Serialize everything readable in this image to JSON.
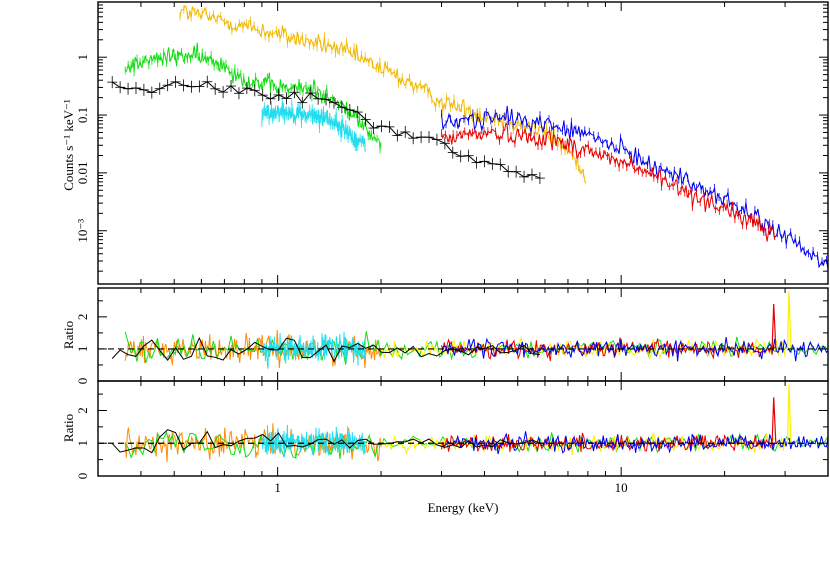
{
  "colors": {
    "black": "#000000",
    "green": "#11dd11",
    "cyan": "#22ddee",
    "gold": "#f2b800",
    "blue": "#0000ee",
    "red": "#e80000",
    "orange": "#ff8c00",
    "yellow": "#ffee00"
  },
  "chart_data": [
    {
      "type": "line",
      "panel": "spectrum",
      "xlabel": "Energy (keV)",
      "ylabel": "Counts s⁻¹ keV⁻¹",
      "xscale": "log",
      "yscale": "log",
      "xlim": [
        0.3,
        40
      ],
      "ylim": [
        0.00012,
        9
      ],
      "y_tick_labels": [
        "1",
        "0.1",
        "0.01",
        "10⁻³"
      ],
      "y_tick_values": [
        1,
        0.1,
        0.01,
        0.001
      ],
      "grid": false,
      "series": [
        {
          "color_key": "gold",
          "x": [
            0.52,
            0.7,
            1.0,
            1.5,
            2.0,
            2.5,
            3.0,
            4.0,
            5.0,
            6.0,
            7.0,
            7.9
          ],
          "y": [
            6.5,
            4.2,
            2.5,
            1.4,
            0.65,
            0.33,
            0.17,
            0.1,
            0.075,
            0.05,
            0.025,
            0.008
          ]
        },
        {
          "color_key": "green",
          "x": [
            0.36,
            0.45,
            0.55,
            0.7,
            0.8,
            0.9,
            1.0,
            1.3,
            1.6,
            1.8,
            2.0
          ],
          "y": [
            0.7,
            0.95,
            1.1,
            0.75,
            0.4,
            0.35,
            0.3,
            0.28,
            0.12,
            0.06,
            0.03
          ]
        },
        {
          "color_key": "cyan",
          "x": [
            0.9,
            1.0,
            1.2,
            1.4,
            1.6,
            1.8
          ],
          "y": [
            0.1,
            0.12,
            0.1,
            0.09,
            0.05,
            0.03
          ]
        },
        {
          "color_key": "black",
          "x": [
            0.33,
            0.4,
            0.5,
            0.6,
            0.8,
            1.0,
            1.2,
            1.5,
            1.8,
            2.2,
            2.8,
            3.3,
            4.0,
            5.0,
            5.8
          ],
          "y": [
            0.35,
            0.28,
            0.35,
            0.3,
            0.25,
            0.22,
            0.2,
            0.17,
            0.08,
            0.05,
            0.04,
            0.025,
            0.015,
            0.01,
            0.008
          ]
        },
        {
          "color_key": "blue",
          "x": [
            3.0,
            4.0,
            5.0,
            6.0,
            8.0,
            10.0,
            12.0,
            15.0,
            20.0,
            25.0,
            30.0,
            35.0,
            40.0
          ],
          "y": [
            0.07,
            0.09,
            0.085,
            0.07,
            0.045,
            0.025,
            0.015,
            0.008,
            0.0035,
            0.0015,
            0.0008,
            0.0004,
            0.00025
          ]
        },
        {
          "color_key": "red",
          "x": [
            3.0,
            4.0,
            5.0,
            6.0,
            8.0,
            10.0,
            12.0,
            15.0,
            20.0,
            25.0,
            28.0
          ],
          "y": [
            0.04,
            0.05,
            0.045,
            0.04,
            0.025,
            0.015,
            0.01,
            0.005,
            0.0025,
            0.0012,
            0.0008
          ]
        }
      ]
    },
    {
      "type": "line",
      "panel": "ratio-1",
      "ylabel": "Ratio",
      "xscale": "log",
      "xlim": [
        0.3,
        40
      ],
      "ylim": [
        0,
        2.9
      ],
      "y_tick_labels": [
        "0",
        "1",
        "2"
      ],
      "y_tick_values": [
        0,
        1,
        2
      ],
      "reference_line": 1,
      "series": [
        {
          "color_key": "orange",
          "x": [
            0.36,
            2.0
          ],
          "y": [
            1.0,
            1.0
          ]
        },
        {
          "color_key": "green",
          "x": [
            0.36,
            40
          ],
          "y": [
            1.0,
            1.0
          ]
        },
        {
          "color_key": "cyan",
          "x": [
            0.9,
            1.8
          ],
          "y": [
            1.0,
            1.0
          ]
        },
        {
          "color_key": "yellow",
          "x": [
            2.0,
            30
          ],
          "y": [
            1.0,
            1.0
          ]
        },
        {
          "color_key": "red",
          "x": [
            3.0,
            28
          ],
          "y": [
            1.0,
            1.0
          ]
        },
        {
          "color_key": "blue",
          "x": [
            3.0,
            40
          ],
          "y": [
            1.0,
            1.0
          ]
        },
        {
          "color_key": "black",
          "x": [
            0.33,
            5.8
          ],
          "y": [
            1.0,
            1.0
          ]
        }
      ]
    },
    {
      "type": "line",
      "panel": "ratio-2",
      "ylabel": "Ratio",
      "xscale": "log",
      "xlim": [
        0.3,
        40
      ],
      "ylim": [
        0,
        2.9
      ],
      "y_tick_labels": [
        "0",
        "1",
        "2"
      ],
      "y_tick_values": [
        0,
        1,
        2
      ],
      "x_tick_labels": [
        "1",
        "10"
      ],
      "x_tick_values": [
        1,
        10
      ],
      "reference_line": 1,
      "series": [
        {
          "color_key": "orange",
          "x": [
            0.36,
            2.0
          ],
          "y": [
            1.0,
            1.0
          ]
        },
        {
          "color_key": "green",
          "x": [
            0.36,
            40
          ],
          "y": [
            1.0,
            1.0
          ]
        },
        {
          "color_key": "cyan",
          "x": [
            0.9,
            1.8
          ],
          "y": [
            1.0,
            1.0
          ]
        },
        {
          "color_key": "yellow",
          "x": [
            2.0,
            30
          ],
          "y": [
            1.0,
            1.0
          ]
        },
        {
          "color_key": "red",
          "x": [
            3.0,
            28
          ],
          "y": [
            1.0,
            1.0
          ]
        },
        {
          "color_key": "blue",
          "x": [
            3.0,
            40
          ],
          "y": [
            1.0,
            1.0
          ]
        },
        {
          "color_key": "black",
          "x": [
            0.33,
            5.8
          ],
          "y": [
            1.0,
            1.0
          ]
        }
      ]
    }
  ]
}
